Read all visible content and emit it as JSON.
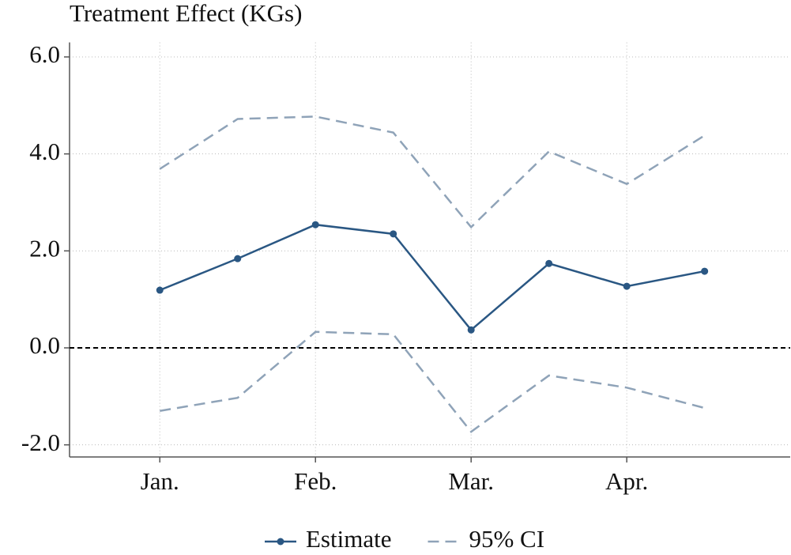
{
  "chart_data": {
    "type": "line",
    "title": "Treatment Effect (KGs)",
    "x": [
      1,
      1.5,
      2,
      2.5,
      3,
      3.5,
      4,
      4.5
    ],
    "xlim": [
      0.42,
      5.05
    ],
    "xticks": [
      {
        "value": 1,
        "label": "Jan."
      },
      {
        "value": 2,
        "label": "Feb."
      },
      {
        "value": 3,
        "label": "Mar."
      },
      {
        "value": 4,
        "label": "Apr."
      }
    ],
    "ylim": [
      -2.25,
      6.3
    ],
    "yticks": [
      {
        "value": -2,
        "label": "-2.0"
      },
      {
        "value": 0,
        "label": "0.0"
      },
      {
        "value": 2,
        "label": "2.0"
      },
      {
        "value": 4,
        "label": "4.0"
      },
      {
        "value": 6,
        "label": "6.0"
      }
    ],
    "grid": true,
    "reference_line": 0,
    "series": [
      {
        "name": "Estimate",
        "color": "#2a5783",
        "values": [
          1.19,
          1.84,
          2.54,
          2.35,
          0.37,
          1.74,
          1.27,
          1.58
        ]
      },
      {
        "name": "95% CI",
        "color": "#8fa3b8",
        "upper": [
          3.69,
          4.72,
          4.77,
          4.44,
          2.49,
          4.05,
          3.38,
          4.38
        ],
        "lower": [
          -1.3,
          -1.03,
          0.33,
          0.28,
          -1.73,
          -0.57,
          -0.82,
          -1.24
        ]
      }
    ],
    "legend": "bottom"
  }
}
